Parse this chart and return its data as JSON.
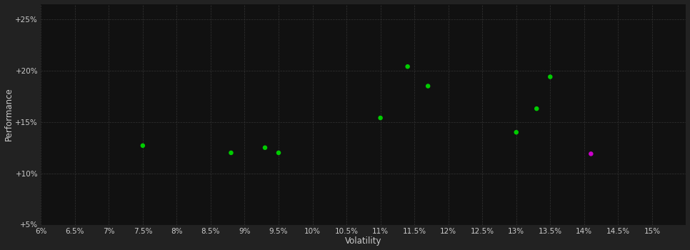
{
  "background_color": "#2a2a2a",
  "plot_bg_color": "#111111",
  "outer_bg_color": "#222222",
  "grid_color": "#333333",
  "xlabel": "Volatility",
  "ylabel": "Performance",
  "xlim": [
    0.06,
    0.155
  ],
  "ylim": [
    0.05,
    0.265
  ],
  "xticks": [
    0.06,
    0.065,
    0.07,
    0.075,
    0.08,
    0.085,
    0.09,
    0.095,
    0.1,
    0.105,
    0.11,
    0.115,
    0.12,
    0.125,
    0.13,
    0.135,
    0.14,
    0.145,
    0.15
  ],
  "yticks": [
    0.05,
    0.1,
    0.15,
    0.2,
    0.25
  ],
  "ytick_labels": [
    "+5%",
    "+10%",
    "+15%",
    "+20%",
    "+25%"
  ],
  "green_points": [
    [
      0.075,
      0.127
    ],
    [
      0.088,
      0.12
    ],
    [
      0.093,
      0.125
    ],
    [
      0.095,
      0.12
    ],
    [
      0.11,
      0.154
    ],
    [
      0.114,
      0.204
    ],
    [
      0.117,
      0.185
    ],
    [
      0.13,
      0.14
    ],
    [
      0.133,
      0.163
    ],
    [
      0.135,
      0.194
    ]
  ],
  "magenta_points": [
    [
      0.141,
      0.119
    ]
  ],
  "green_color": "#00cc00",
  "magenta_color": "#cc00cc",
  "marker_size": 22,
  "tick_color": "#cccccc",
  "label_color": "#cccccc",
  "tick_fontsize": 7.5,
  "label_fontsize": 8.5
}
